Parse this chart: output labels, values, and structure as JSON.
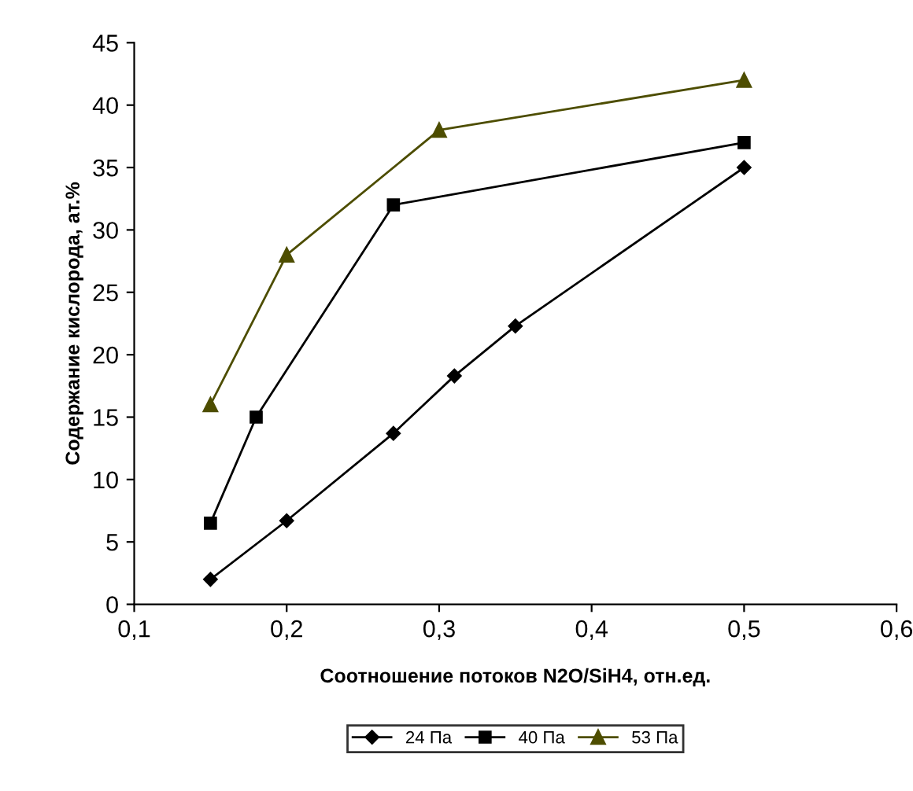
{
  "chart_data": {
    "type": "line",
    "xlabel": "Соотношение потоков N2O/SiH4, отн.ед.",
    "ylabel": "Содержание кислорода, ат.%",
    "series": [
      {
        "name": "24 Па",
        "color": "#000000",
        "marker": "diamond",
        "x": [
          0.15,
          0.2,
          0.27,
          0.31,
          0.35,
          0.5
        ],
        "values": [
          2,
          6.7,
          13.7,
          18.3,
          22.3,
          35
        ]
      },
      {
        "name": "40 Па",
        "color": "#000000",
        "marker": "square",
        "x": [
          0.15,
          0.18,
          0.27,
          0.5
        ],
        "values": [
          6.5,
          15,
          32,
          37
        ]
      },
      {
        "name": "53 Па",
        "color": "#4d4d00",
        "marker": "triangle",
        "x": [
          0.15,
          0.2,
          0.3,
          0.5
        ],
        "values": [
          16,
          28,
          38,
          42
        ]
      }
    ],
    "xlim": [
      0.1,
      0.6
    ],
    "xticks": [
      {
        "value": 0.1,
        "label": "0,1"
      },
      {
        "value": 0.2,
        "label": "0,2"
      },
      {
        "value": 0.3,
        "label": "0,3"
      },
      {
        "value": 0.4,
        "label": "0,4"
      },
      {
        "value": 0.5,
        "label": "0,5"
      },
      {
        "value": 0.6,
        "label": "0,6"
      }
    ],
    "ylim": [
      0,
      45
    ],
    "yticks": [
      0,
      5,
      10,
      15,
      20,
      25,
      30,
      35,
      40,
      45
    ],
    "grid": false,
    "legend": "bottom"
  }
}
